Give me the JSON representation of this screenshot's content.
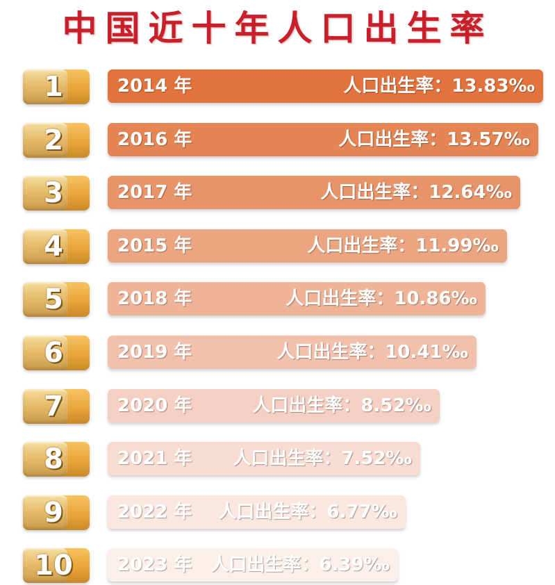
{
  "title": "中国近十年人口出生率",
  "chart_data": {
    "type": "bar",
    "orientation": "horizontal",
    "sort": "descending",
    "value_prefix": "人口出生率：",
    "value_unit": "‰",
    "year_suffix": "年",
    "ranks": [
      "1",
      "2",
      "3",
      "4",
      "5",
      "6",
      "7",
      "8",
      "9",
      "10"
    ],
    "categories": [
      "2014",
      "2016",
      "2017",
      "2015",
      "2018",
      "2019",
      "2020",
      "2021",
      "2022",
      "2023"
    ],
    "values": [
      13.83,
      13.57,
      12.64,
      11.99,
      10.86,
      10.41,
      8.52,
      7.52,
      6.77,
      6.39
    ],
    "value_labels": [
      "13.83‰",
      "13.57‰",
      "12.64‰",
      "11.99‰",
      "10.86‰",
      "10.41‰",
      "8.52‰",
      "7.52‰",
      "6.77‰",
      "6.39‰"
    ],
    "bar_colors": [
      "#e2733c",
      "#e58553",
      "#e8946a",
      "#eba580",
      "#efb398",
      "#f2c1ad",
      "#f5cfc1",
      "#f8dcd2",
      "#fae7e0",
      "#fcefea"
    ],
    "rank_color": "#e6aa48",
    "title_color": "#c8202a"
  }
}
